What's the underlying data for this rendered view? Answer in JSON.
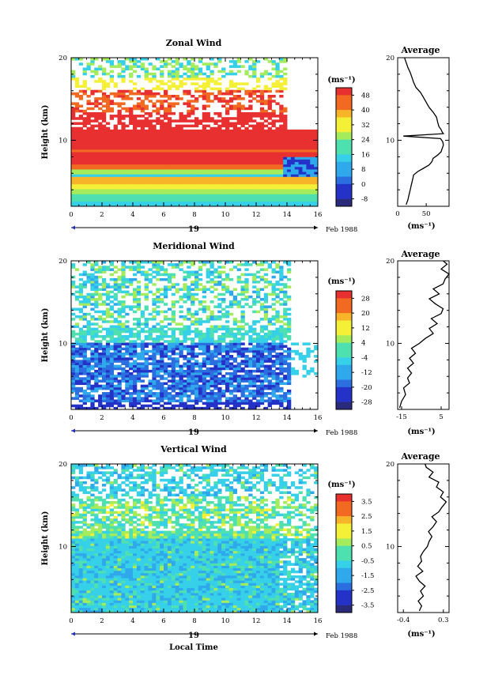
{
  "chart_data": [
    {
      "type": "heatmap",
      "title": "Zonal Wind",
      "ylabel": "Height (km)",
      "ylim": [
        2,
        20
      ],
      "xlim": [
        0,
        16
      ],
      "x_ticks": [
        "0",
        "2",
        "4",
        "6",
        "8",
        "10",
        "12",
        "14",
        "16"
      ],
      "y_ticks": [
        "20",
        "10"
      ],
      "day_label": "19",
      "date_label": "Feb 1988",
      "colorbar": {
        "unit": "(ms⁻¹)",
        "ticks": [
          "48",
          "40",
          "32",
          "24",
          "16",
          "8",
          "0",
          "-8"
        ],
        "range": [
          -12,
          52
        ]
      },
      "profile": {
        "title": "Average",
        "xlabel": "(ms⁻¹)",
        "x_ticks": [
          "0",
          "50"
        ],
        "y_ticks": [
          "20",
          "10"
        ],
        "xlim": [
          0,
          90
        ],
        "heights": [
          2.2,
          2.8,
          3.4,
          4.0,
          4.6,
          5.2,
          5.8,
          6.2,
          6.6,
          7.0,
          7.4,
          7.8,
          8.2,
          8.6,
          9.0,
          9.4,
          9.8,
          10.2,
          10.5,
          10.8,
          11.0,
          11.3,
          11.7,
          12.2,
          12.8,
          13.4,
          14.0,
          14.6,
          15.2,
          15.8,
          16.4,
          17.0,
          17.6,
          18.2,
          18.8,
          19.4,
          20.0
        ],
        "values": [
          15,
          18,
          20,
          22,
          24,
          26,
          28,
          35,
          45,
          55,
          60,
          62,
          70,
          76,
          78,
          80,
          79,
          75,
          10,
          80,
          78,
          76,
          72,
          70,
          68,
          62,
          55,
          50,
          45,
          40,
          32,
          28,
          25,
          22,
          18,
          15,
          12
        ]
      }
    },
    {
      "type": "heatmap",
      "title": "Meridional Wind",
      "ylabel": "Height (km)",
      "ylim": [
        2,
        20
      ],
      "xlim": [
        0,
        16
      ],
      "x_ticks": [
        "0",
        "2",
        "4",
        "6",
        "8",
        "10",
        "12",
        "14",
        "16"
      ],
      "y_ticks": [
        "20",
        "10"
      ],
      "day_label": "19",
      "date_label": "Feb 1988",
      "colorbar": {
        "unit": "(ms⁻¹)",
        "ticks": [
          "28",
          "20",
          "12",
          "4",
          "-4",
          "-12",
          "-20",
          "-28"
        ],
        "range": [
          -32,
          32
        ]
      },
      "profile": {
        "title": "Average",
        "xlabel": "(ms⁻¹)",
        "x_ticks": [
          "-15",
          "5"
        ],
        "y_ticks": [
          "20",
          "10"
        ],
        "xlim": [
          -17,
          9
        ],
        "heights": [
          2.2,
          3.0,
          3.8,
          4.6,
          5.2,
          5.8,
          6.4,
          7.0,
          7.6,
          8.2,
          8.8,
          9.4,
          10.0,
          10.6,
          11.2,
          11.8,
          12.4,
          13.0,
          13.6,
          14.2,
          14.8,
          15.4,
          16.0,
          16.6,
          17.2,
          17.8,
          18.4,
          19.0,
          19.6,
          20.0
        ],
        "values": [
          -16,
          -15,
          -13,
          -14,
          -11,
          -12,
          -10,
          -12,
          -9,
          -11,
          -8,
          -10,
          -6,
          -3,
          1,
          -1,
          3,
          0,
          5,
          6,
          2,
          -1,
          4,
          1,
          6,
          7,
          9,
          5,
          8,
          6
        ]
      }
    },
    {
      "type": "heatmap",
      "title": "Vertical Wind",
      "xlabel": "Local Time",
      "ylabel": "Height (km)",
      "ylim": [
        2,
        20
      ],
      "xlim": [
        0,
        16
      ],
      "x_ticks": [
        "0",
        "2",
        "4",
        "6",
        "8",
        "10",
        "12",
        "14",
        "16"
      ],
      "y_ticks": [
        "20",
        "10"
      ],
      "day_label": "19",
      "date_label": "Feb 1988",
      "colorbar": {
        "unit": "(ms⁻¹)",
        "ticks": [
          "3.5",
          "2.5",
          "1.5",
          "0.5",
          "-0.5",
          "-1.5",
          "-2.5",
          "-3.5"
        ],
        "range": [
          -4,
          4
        ]
      },
      "profile": {
        "title": "Average",
        "xlabel": "(ms⁻¹)",
        "x_ticks": [
          "-0.4",
          "0.3"
        ],
        "y_ticks": [
          "20",
          "10"
        ],
        "xlim": [
          -0.5,
          0.4
        ],
        "heights": [
          2.2,
          2.8,
          3.4,
          4.0,
          4.6,
          5.2,
          5.8,
          6.4,
          7.0,
          7.6,
          8.2,
          8.8,
          9.4,
          10.0,
          10.6,
          11.2,
          11.8,
          12.4,
          13.0,
          13.6,
          14.2,
          14.8,
          15.4,
          16.0,
          16.6,
          17.2,
          17.8,
          18.4,
          19.0,
          19.6,
          20.0
        ],
        "values": [
          -0.12,
          -0.08,
          -0.14,
          -0.05,
          -0.1,
          -0.02,
          -0.12,
          -0.18,
          -0.06,
          -0.15,
          -0.08,
          -0.1,
          -0.05,
          0.02,
          0.05,
          0.1,
          0.04,
          0.12,
          0.18,
          0.1,
          0.22,
          0.28,
          0.35,
          0.25,
          0.3,
          0.18,
          0.22,
          0.05,
          0.12,
          0.0,
          -0.02
        ]
      }
    }
  ]
}
